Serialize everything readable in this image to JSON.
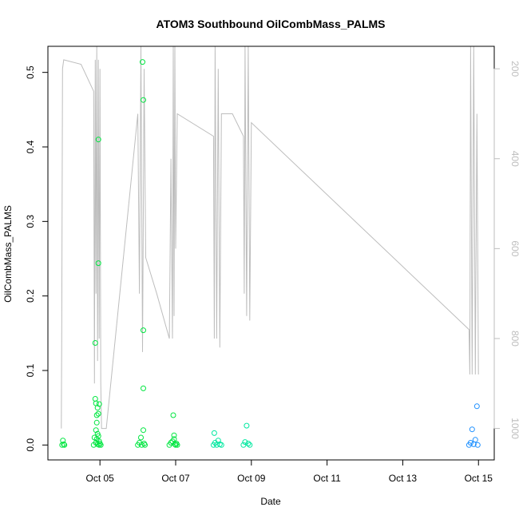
{
  "chart_data": {
    "type": "scatter",
    "title": "ATOM3 Southbound OilCombMass_PALMS",
    "xlabel": "Date",
    "ylabel": "OilCombMass_PALMS",
    "xlim": [
      "2016-10-03T15:00",
      "2016-10-15T10:00"
    ],
    "ylim": [
      -0.02,
      0.535
    ],
    "y2lim": [
      1070,
      150
    ],
    "x_ticks": [
      {
        "date": "2016-10-05T00:00",
        "label": "Oct 05"
      },
      {
        "date": "2016-10-07T00:00",
        "label": "Oct 07"
      },
      {
        "date": "2016-10-09T00:00",
        "label": "Oct 09"
      },
      {
        "date": "2016-10-11T00:00",
        "label": "Oct 11"
      },
      {
        "date": "2016-10-13T00:00",
        "label": "Oct 13"
      },
      {
        "date": "2016-10-15T00:00",
        "label": "Oct 15"
      }
    ],
    "y_ticks": [
      {
        "value": 0.0,
        "label": "0.0"
      },
      {
        "value": 0.1,
        "label": "0.1"
      },
      {
        "value": 0.2,
        "label": "0.2"
      },
      {
        "value": 0.3,
        "label": "0.3"
      },
      {
        "value": 0.4,
        "label": "0.4"
      },
      {
        "value": 0.5,
        "label": "0.5"
      }
    ],
    "y2_ticks": [
      {
        "value": 200,
        "label": "200"
      },
      {
        "value": 400,
        "label": "400"
      },
      {
        "value": 600,
        "label": "600"
      },
      {
        "value": 800,
        "label": "800"
      },
      {
        "value": 1000,
        "label": "1000"
      }
    ],
    "grid": false,
    "series": [
      {
        "role": "oil-comb-mass",
        "color": "#00e640",
        "marker": "open-circle",
        "points": [
          [
            "2016-10-04T00:00",
            0.0
          ],
          [
            "2016-10-04T00:30",
            0.006
          ],
          [
            "2016-10-04T01:00",
            0.001
          ],
          [
            "2016-10-04T01:30",
            0.0
          ],
          [
            "2016-10-04T20:00",
            0.0
          ],
          [
            "2016-10-04T20:30",
            0.01
          ],
          [
            "2016-10-04T21:00",
            0.137
          ],
          [
            "2016-10-04T21:00",
            0.062
          ],
          [
            "2016-10-04T21:30",
            0.02
          ],
          [
            "2016-10-04T21:30",
            0.056
          ],
          [
            "2016-10-04T22:00",
            0.04
          ],
          [
            "2016-10-04T22:00",
            0.03
          ],
          [
            "2016-10-04T22:30",
            0.05
          ],
          [
            "2016-10-04T22:30",
            0.015
          ],
          [
            "2016-10-04T23:00",
            0.41
          ],
          [
            "2016-10-04T23:00",
            0.042
          ],
          [
            "2016-10-04T23:00",
            0.244
          ],
          [
            "2016-10-04T23:30",
            0.055
          ],
          [
            "2016-10-04T23:30",
            0.005
          ],
          [
            "2016-10-04T21:30",
            0.003
          ],
          [
            "2016-10-04T22:00",
            0.008
          ],
          [
            "2016-10-04T22:30",
            0.001
          ],
          [
            "2016-10-04T23:00",
            0.012
          ],
          [
            "2016-10-04T23:30",
            0.0
          ],
          [
            "2016-10-05T00:00",
            0.002
          ],
          [
            "2016-10-05T00:30",
            0.0
          ],
          [
            "2016-10-06T00:00",
            0.0
          ],
          [
            "2016-10-06T01:00",
            0.003
          ],
          [
            "2016-10-06T02:00",
            0.01
          ],
          [
            "2016-10-06T02:30",
            0.0
          ],
          [
            "2016-10-06T03:00",
            0.514
          ],
          [
            "2016-10-06T03:30",
            0.463
          ],
          [
            "2016-10-06T03:30",
            0.154
          ],
          [
            "2016-10-06T03:30",
            0.076
          ],
          [
            "2016-10-06T03:30",
            0.02
          ],
          [
            "2016-10-06T04:00",
            0.002
          ],
          [
            "2016-10-06T04:30",
            0.0
          ],
          [
            "2016-10-06T20:00",
            0.0
          ],
          [
            "2016-10-06T21:00",
            0.003
          ],
          [
            "2016-10-06T22:00",
            0.005
          ],
          [
            "2016-10-06T22:30",
            0.04
          ],
          [
            "2016-10-06T23:00",
            0.008
          ],
          [
            "2016-10-06T23:00",
            0.013
          ],
          [
            "2016-10-06T23:30",
            0.001
          ],
          [
            "2016-10-07T00:00",
            0.0
          ],
          [
            "2016-10-07T00:30",
            0.002
          ],
          [
            "2016-10-07T01:00",
            0.0
          ],
          [
            "2016-10-08T00:00",
            0.0
          ],
          [
            "2016-10-08T00:30",
            0.016
          ],
          [
            "2016-10-08T01:00",
            0.003
          ],
          [
            "2016-10-08T02:00",
            0.0
          ],
          [
            "2016-10-08T03:00",
            0.006
          ],
          [
            "2016-10-08T04:00",
            0.001
          ],
          [
            "2016-10-08T05:00",
            0.0
          ],
          [
            "2016-10-08T19:00",
            0.0
          ],
          [
            "2016-10-08T20:00",
            0.004
          ],
          [
            "2016-10-08T21:00",
            0.026
          ],
          [
            "2016-10-08T22:00",
            0.002
          ],
          [
            "2016-10-08T23:00",
            0.0
          ],
          [
            "2016-10-14T18:00",
            0.0
          ],
          [
            "2016-10-14T19:00",
            0.003
          ],
          [
            "2016-10-14T20:00",
            0.021
          ],
          [
            "2016-10-14T21:00",
            0.001
          ],
          [
            "2016-10-14T22:00",
            0.007
          ],
          [
            "2016-10-14T23:00",
            0.052
          ],
          [
            "2016-10-14T23:30",
            0.0
          ]
        ]
      },
      {
        "role": "pressure-altitude-trace",
        "color": "#bdbdbd",
        "axis": "right",
        "points": [
          [
            "2016-10-03T23:30",
            1000
          ],
          [
            "2016-10-03T23:45",
            800
          ],
          [
            "2016-10-04T00:00",
            500
          ],
          [
            "2016-10-04T00:15",
            200
          ],
          [
            "2016-10-04T01:00",
            180
          ],
          [
            "2016-10-04T12:00",
            190
          ],
          [
            "2016-10-04T20:00",
            250
          ],
          [
            "2016-10-04T20:30",
            900
          ],
          [
            "2016-10-04T21:00",
            180
          ],
          [
            "2016-10-04T21:30",
            700
          ],
          [
            "2016-10-04T22:00",
            150
          ],
          [
            "2016-10-04T22:30",
            850
          ],
          [
            "2016-10-04T23:00",
            180
          ],
          [
            "2016-10-04T23:30",
            800
          ],
          [
            "2016-10-05T00:00",
            200
          ],
          [
            "2016-10-05T00:30",
            900
          ],
          [
            "2016-10-05T01:00",
            1000
          ],
          [
            "2016-10-05T04:00",
            1000
          ],
          [
            "2016-10-06T00:00",
            300
          ],
          [
            "2016-10-06T01:00",
            700
          ],
          [
            "2016-10-06T02:00",
            150
          ],
          [
            "2016-10-06T03:00",
            830
          ],
          [
            "2016-10-06T04:00",
            200
          ],
          [
            "2016-10-06T05:00",
            620
          ],
          [
            "2016-10-06T12:00",
            700
          ],
          [
            "2016-10-06T20:00",
            800
          ],
          [
            "2016-10-06T21:00",
            400
          ],
          [
            "2016-10-06T22:00",
            800
          ],
          [
            "2016-10-06T22:30",
            150
          ],
          [
            "2016-10-06T23:00",
            750
          ],
          [
            "2016-10-06T23:30",
            150
          ],
          [
            "2016-10-07T00:00",
            600
          ],
          [
            "2016-10-07T01:00",
            300
          ],
          [
            "2016-10-08T00:00",
            350
          ],
          [
            "2016-10-08T00:30",
            800
          ],
          [
            "2016-10-08T01:00",
            150
          ],
          [
            "2016-10-08T02:00",
            800
          ],
          [
            "2016-10-08T03:00",
            200
          ],
          [
            "2016-10-08T04:00",
            820
          ],
          [
            "2016-10-08T05:00",
            300
          ],
          [
            "2016-10-08T12:00",
            300
          ],
          [
            "2016-10-08T19:00",
            350
          ],
          [
            "2016-10-08T19:30",
            700
          ],
          [
            "2016-10-08T20:00",
            150
          ],
          [
            "2016-10-08T21:00",
            750
          ],
          [
            "2016-10-08T22:00",
            150
          ],
          [
            "2016-10-08T23:00",
            760
          ],
          [
            "2016-10-09T00:00",
            320
          ],
          [
            "2016-10-14T18:00",
            780
          ],
          [
            "2016-10-14T18:30",
            880
          ],
          [
            "2016-10-14T19:00",
            150
          ],
          [
            "2016-10-14T20:00",
            880
          ],
          [
            "2016-10-14T21:00",
            150
          ],
          [
            "2016-10-14T22:00",
            880
          ],
          [
            "2016-10-14T23:00",
            300
          ],
          [
            "2016-10-15T00:00",
            880
          ]
        ]
      }
    ]
  }
}
